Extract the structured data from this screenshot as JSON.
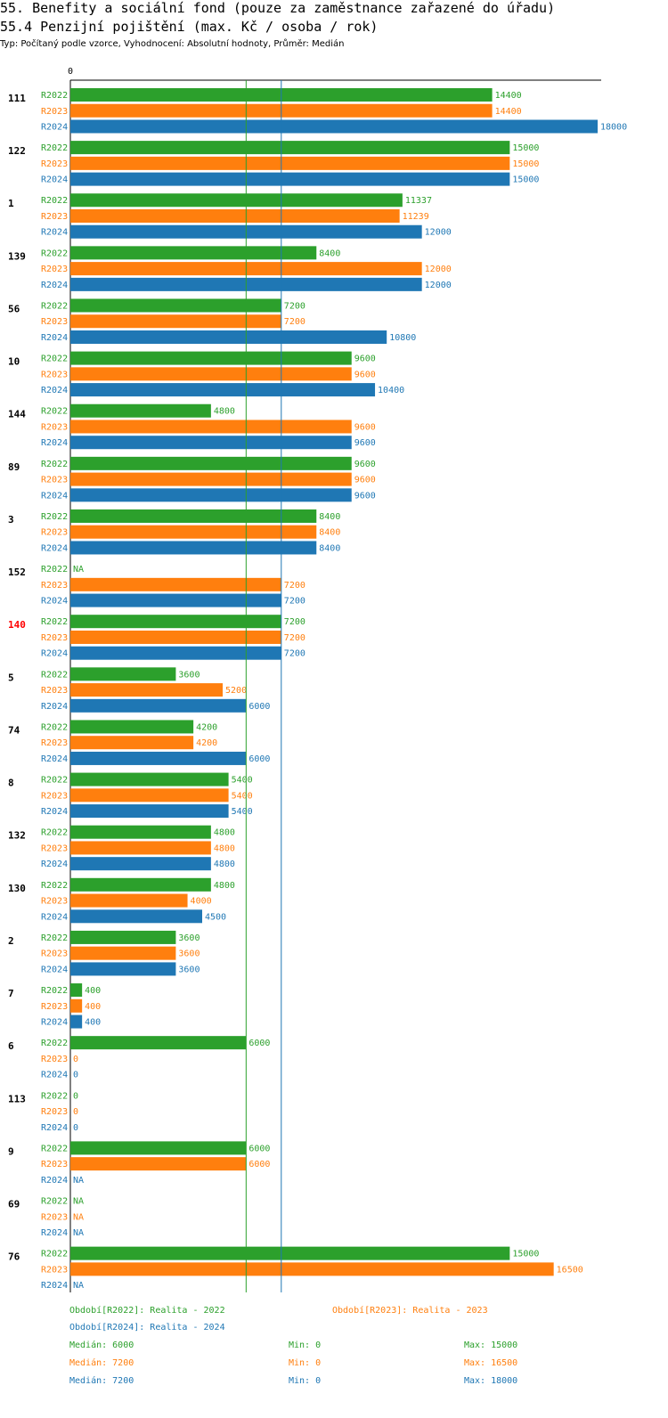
{
  "title": "55. Benefity a sociální fond (pouze za zaměstnance zařazené do úřadu)",
  "subtitle": "55.4 Penzijní pojištění (max. Kč / osoba / rok)",
  "type_line": "Typ: Počítaný podle vzorce, Vyhodnocení: Absolutní hodnoty, Průměr: Medián",
  "chart_data": {
    "type": "bar",
    "orientation": "horizontal",
    "axis_zero_label": "0",
    "xlim": [
      0,
      18000
    ],
    "highlight_group": "140",
    "highlight_color": "#ff0000",
    "series": [
      {
        "name": "R2022",
        "color": "#2ca02c"
      },
      {
        "name": "R2023",
        "color": "#ff7f0e"
      },
      {
        "name": "R2024",
        "color": "#1f77b4"
      }
    ],
    "groups": [
      {
        "label": "111",
        "values": [
          14400,
          14400,
          18000
        ]
      },
      {
        "label": "122",
        "values": [
          15000,
          15000,
          15000
        ]
      },
      {
        "label": "1",
        "values": [
          11337,
          11239,
          12000
        ]
      },
      {
        "label": "139",
        "values": [
          8400,
          12000,
          12000
        ]
      },
      {
        "label": "56",
        "values": [
          7200,
          7200,
          10800
        ]
      },
      {
        "label": "10",
        "values": [
          9600,
          9600,
          10400
        ]
      },
      {
        "label": "144",
        "values": [
          4800,
          9600,
          9600
        ]
      },
      {
        "label": "89",
        "values": [
          9600,
          9600,
          9600
        ]
      },
      {
        "label": "3",
        "values": [
          8400,
          8400,
          8400
        ]
      },
      {
        "label": "152",
        "values": [
          "NA",
          7200,
          7200
        ]
      },
      {
        "label": "140",
        "values": [
          7200,
          7200,
          7200
        ]
      },
      {
        "label": "5",
        "values": [
          3600,
          5200,
          6000
        ]
      },
      {
        "label": "74",
        "values": [
          4200,
          4200,
          6000
        ]
      },
      {
        "label": "8",
        "values": [
          5400,
          5400,
          5400
        ]
      },
      {
        "label": "132",
        "values": [
          4800,
          4800,
          4800
        ]
      },
      {
        "label": "130",
        "values": [
          4800,
          4000,
          4500
        ]
      },
      {
        "label": "2",
        "values": [
          3600,
          3600,
          3600
        ]
      },
      {
        "label": "7",
        "values": [
          400,
          400,
          400
        ]
      },
      {
        "label": "6",
        "values": [
          6000,
          0,
          0
        ]
      },
      {
        "label": "113",
        "values": [
          0,
          0,
          0
        ]
      },
      {
        "label": "9",
        "values": [
          6000,
          6000,
          "NA"
        ]
      },
      {
        "label": "69",
        "values": [
          "NA",
          "NA",
          "NA"
        ]
      },
      {
        "label": "76",
        "values": [
          15000,
          16500,
          "NA"
        ]
      }
    ],
    "reference_lines": [
      {
        "series": "R2022",
        "value": 6000,
        "color": "#2ca02c"
      },
      {
        "series": "R2024",
        "value": 7200,
        "color": "#1f77b4"
      }
    ]
  },
  "legend": {
    "r2022": "Období[R2022]: Realita - 2022",
    "r2023": "Období[R2023]: Realita - 2023",
    "r2024": "Období[R2024]: Realita - 2024"
  },
  "stats": {
    "r2022": {
      "median": "Medián: 6000",
      "min": "Min: 0",
      "max": "Max: 15000"
    },
    "r2023": {
      "median": "Medián: 7200",
      "min": "Min: 0",
      "max": "Max: 16500"
    },
    "r2024": {
      "median": "Medián: 7200",
      "min": "Min: 0",
      "max": "Max: 18000"
    }
  },
  "colors": {
    "r2022": "#2ca02c",
    "r2023": "#ff7f0e",
    "r2024": "#1f77b4"
  }
}
